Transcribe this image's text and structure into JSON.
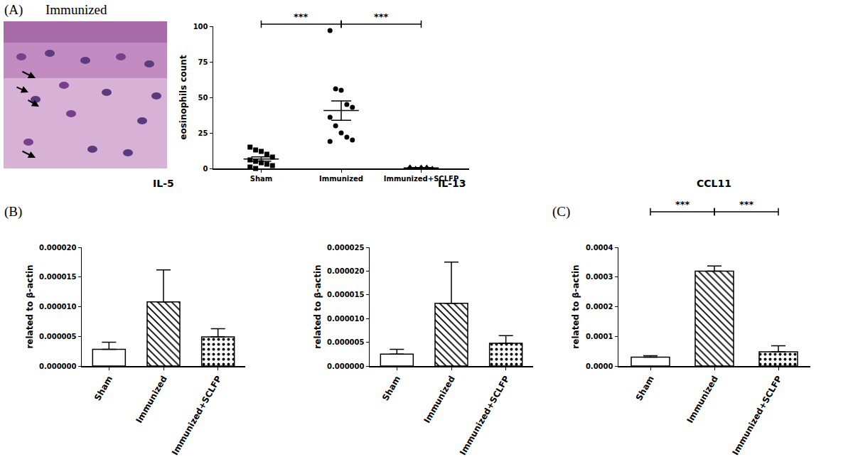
{
  "panels": [
    "(A)",
    "(B)",
    "(C)"
  ],
  "image_caption": "Immunized",
  "chart_data": [
    {
      "type": "scatter",
      "categories": [
        "Sham",
        "Immunized",
        "Immunized+SCLFP"
      ],
      "values": [
        [
          15,
          13,
          12,
          10,
          8,
          6,
          5,
          4,
          3,
          2,
          1,
          0
        ],
        [
          97,
          56,
          55,
          45,
          43,
          36,
          30,
          25,
          22,
          20,
          19
        ],
        [
          1,
          0,
          1,
          0,
          0,
          1,
          0,
          0,
          1,
          0,
          0
        ]
      ],
      "mean": [
        6.6,
        40.7,
        0.4
      ],
      "sem": [
        1.5,
        6.8,
        0.2
      ],
      "color": "#000000",
      "y_label": "eosinophils count",
      "ylim": [
        0,
        100
      ],
      "yticks": [
        0,
        25,
        50,
        75,
        100
      ],
      "grid": false,
      "annotations": [
        {
          "text": "***",
          "between": [
            "Sham",
            "Immunized"
          ]
        },
        {
          "text": "***",
          "between": [
            "Immunized",
            "Immunized+SCLFP"
          ]
        }
      ]
    },
    {
      "type": "bar",
      "title": "IL-5",
      "categories": [
        "Sham",
        "Immunized",
        "Immunized+SCLFP"
      ],
      "values": [
        2.8e-06,
        1.08e-05,
        4.9e-06
      ],
      "errors": [
        1.2e-06,
        5.4e-06,
        1.4e-06
      ],
      "color": "#000000",
      "y_label": "related to β-actin",
      "ylim": [
        0,
        2e-05
      ],
      "yticks": [
        {
          "value": 0,
          "label": "0.000000"
        },
        {
          "value": 5e-06,
          "label": "0.000005"
        },
        {
          "value": 1e-05,
          "label": "0.000010"
        },
        {
          "value": 1.5e-05,
          "label": "0.000015"
        },
        {
          "value": 2e-05,
          "label": "0.000020"
        }
      ],
      "grid": false
    },
    {
      "type": "bar",
      "title": "IL-13",
      "categories": [
        "Sham",
        "Immunized",
        "Immunized+SCLFP"
      ],
      "values": [
        2.5e-06,
        1.32e-05,
        4.8e-06
      ],
      "errors": [
        1e-06,
        8.7e-06,
        1.6e-06
      ],
      "color": "#000000",
      "y_label": "related to β-actin",
      "ylim": [
        0,
        2.5e-05
      ],
      "yticks": [
        {
          "value": 0,
          "label": "0.000000"
        },
        {
          "value": 5e-06,
          "label": "0.000005"
        },
        {
          "value": 1e-05,
          "label": "0.000010"
        },
        {
          "value": 1.5e-05,
          "label": "0.000015"
        },
        {
          "value": 2e-05,
          "label": "0.000020"
        },
        {
          "value": 2.5e-05,
          "label": "0.000025"
        }
      ],
      "grid": false
    },
    {
      "type": "bar",
      "title": "CCL11",
      "categories": [
        "Sham",
        "Immunized",
        "Immunized+SCLFP"
      ],
      "values": [
        3e-05,
        0.00032,
        4.8e-05
      ],
      "errors": [
        5e-06,
        1.7e-05,
        2e-05
      ],
      "color": "#000000",
      "y_label": "related to β-actin",
      "ylim": [
        0,
        0.0004
      ],
      "yticks": [
        {
          "value": 0,
          "label": "0.0000"
        },
        {
          "value": 0.0001,
          "label": "0.0001"
        },
        {
          "value": 0.0002,
          "label": "0.0002"
        },
        {
          "value": 0.0003,
          "label": "0.0003"
        },
        {
          "value": 0.0004,
          "label": "0.0004"
        }
      ],
      "grid": false,
      "annotations": [
        {
          "text": "***",
          "between": [
            "Sham",
            "Immunized"
          ]
        },
        {
          "text": "***",
          "between": [
            "Immunized",
            "Immunized+SCLFP"
          ]
        }
      ]
    }
  ]
}
